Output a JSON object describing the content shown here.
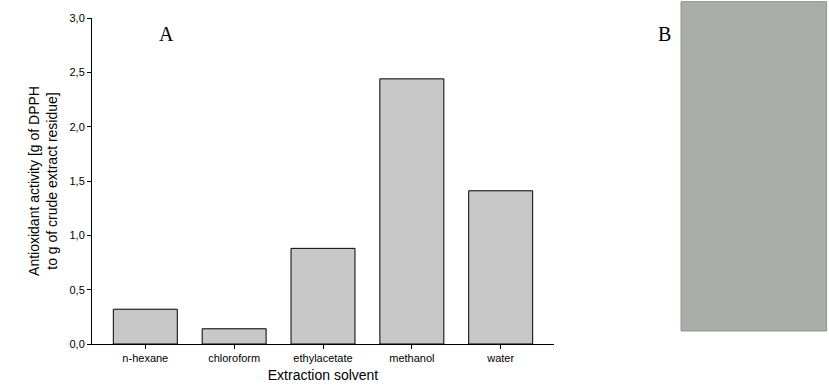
{
  "chart_data": {
    "type": "bar",
    "x_label": "Extraction solvent",
    "y_label": [
      "Antioxidant activity [g of DPPH",
      "to g of crude extract residue]"
    ],
    "categories": [
      "n-hexane",
      "chloroform",
      "ethylacetate",
      "methanol",
      "water"
    ],
    "values": [
      0.32,
      0.14,
      0.88,
      2.44,
      1.41
    ],
    "color": "#c8c8c8",
    "ylim": [
      0,
      3.0
    ],
    "yticks": [
      {
        "value": 0,
        "label": "0,0"
      },
      {
        "value": 0.5,
        "label": "0,5"
      },
      {
        "value": 1.0,
        "label": "1,0"
      },
      {
        "value": 1.5,
        "label": "1,5"
      },
      {
        "value": 2.0,
        "label": "2,0"
      },
      {
        "value": 2.5,
        "label": "2,5"
      },
      {
        "value": 3.0,
        "label": "3,0"
      }
    ],
    "grid": false,
    "annotations": [
      "A",
      "B"
    ]
  }
}
